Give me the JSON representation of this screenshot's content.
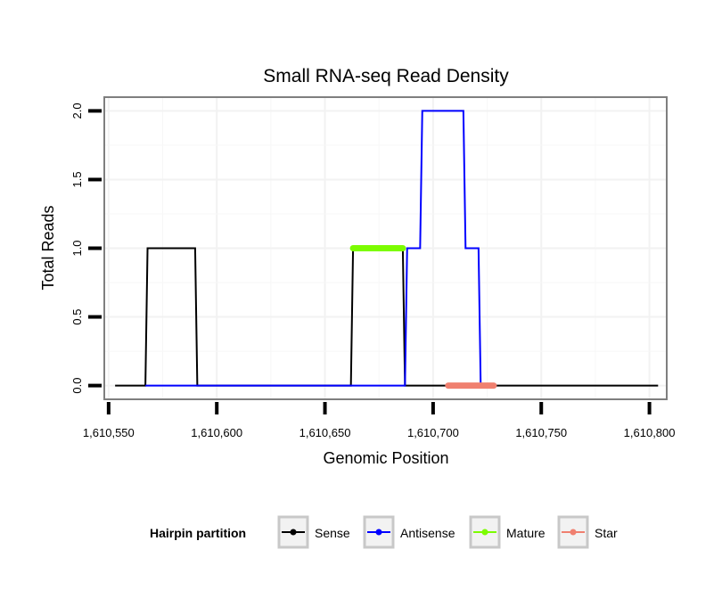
{
  "chart_data": {
    "type": "line",
    "title": "Small RNA-seq Read Density",
    "xlabel": "Genomic Position",
    "ylabel": "Total Reads",
    "xlim": [
      1610548,
      1610808
    ],
    "ylim": [
      -0.1,
      2.1
    ],
    "x_ticks": [
      1610550,
      1610600,
      1610650,
      1610700,
      1610750,
      1610800
    ],
    "x_tick_labels": [
      "1,610,550",
      "1,610,600",
      "1,610,650",
      "1,610,700",
      "1,610,750",
      "1,610,800"
    ],
    "y_ticks": [
      0,
      0.5,
      1.0,
      1.5,
      2.0
    ],
    "y_tick_labels": [
      "0.0",
      "0.5",
      "1.0",
      "1.5",
      "2.0"
    ],
    "grid": true,
    "legend": {
      "title": "Hairpin partition",
      "position": "bottom",
      "entries": [
        {
          "name": "Sense",
          "color": "#000000"
        },
        {
          "name": "Antisense",
          "color": "#0000ff"
        },
        {
          "name": "Mature",
          "color": "#7cfc00"
        },
        {
          "name": "Star",
          "color": "#f08070"
        }
      ]
    },
    "series": [
      {
        "name": "Sense",
        "color": "#000000",
        "width": 2,
        "x": [
          1610553,
          1610567,
          1610568,
          1610590,
          1610591,
          1610662,
          1610663,
          1610686,
          1610687,
          1610804
        ],
        "y": [
          0,
          0,
          1,
          1,
          0,
          0,
          1,
          1,
          0,
          0
        ]
      },
      {
        "name": "Antisense",
        "color": "#0000ff",
        "width": 2,
        "x": [
          1610567,
          1610591,
          1610662,
          1610687,
          1610688,
          1610694,
          1610695,
          1610714,
          1610715,
          1610721,
          1610722
        ],
        "y": [
          0,
          0,
          0,
          0,
          1,
          1,
          2,
          2,
          1,
          1,
          0
        ]
      },
      {
        "name": "Mature",
        "color": "#7cfc00",
        "width": 7,
        "x": [
          1610663,
          1610686
        ],
        "y": [
          1,
          1
        ]
      },
      {
        "name": "Star",
        "color": "#f08070",
        "width": 7,
        "x": [
          1610707,
          1610728
        ],
        "y": [
          0,
          0
        ]
      }
    ]
  }
}
